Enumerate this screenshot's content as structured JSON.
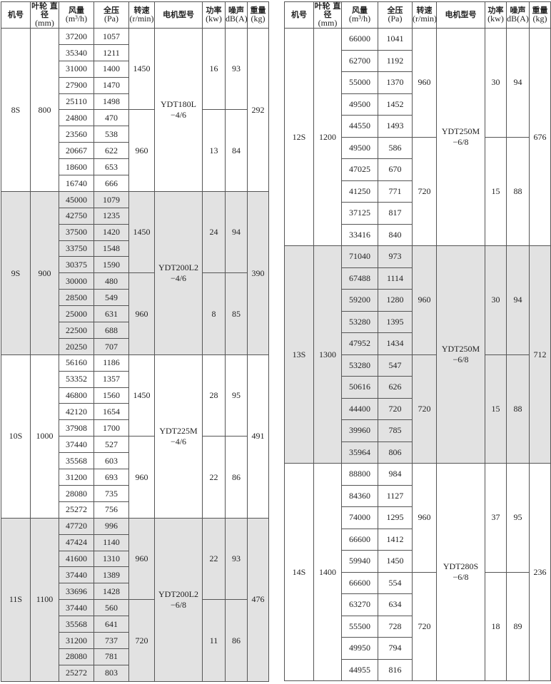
{
  "headers": {
    "model": {
      "zh": "机号"
    },
    "diameter": {
      "zh": "叶轮 直径",
      "unit": "(mm)"
    },
    "flow": {
      "zh": "风量",
      "unit": "(m³/h)"
    },
    "pressure": {
      "zh": "全压",
      "unit": "(Pa)"
    },
    "speed": {
      "zh": "转速",
      "unit": "(r/min)"
    },
    "motor": {
      "zh": "电机型号"
    },
    "power": {
      "zh": "功率",
      "unit": "(kw)"
    },
    "noise": {
      "zh": "噪声",
      "unit": "dB(A)"
    },
    "weight": {
      "zh": "重量",
      "unit": "(kg)"
    }
  },
  "tables": [
    {
      "groups": [
        {
          "model": "8S",
          "diameter": "800",
          "shaded": false,
          "motor": [
            "YDT180L",
            "−4/6"
          ],
          "weight": "292",
          "speeds": [
            "1450",
            "960"
          ],
          "powers": [
            "16",
            "13"
          ],
          "noise": [
            "93",
            "84"
          ],
          "rows": [
            [
              "37200",
              "1057"
            ],
            [
              "35340",
              "1211"
            ],
            [
              "31000",
              "1400"
            ],
            [
              "27900",
              "1470"
            ],
            [
              "25110",
              "1498"
            ],
            [
              "24800",
              "470"
            ],
            [
              "23560",
              "538"
            ],
            [
              "20667",
              "622"
            ],
            [
              "18600",
              "653"
            ],
            [
              "16740",
              "666"
            ]
          ]
        },
        {
          "model": "9S",
          "diameter": "900",
          "shaded": true,
          "motor": [
            "YDT200L2",
            "−4/6"
          ],
          "weight": "390",
          "speeds": [
            "1450",
            "960"
          ],
          "powers": [
            "24",
            "8"
          ],
          "noise": [
            "94",
            "85"
          ],
          "rows": [
            [
              "45000",
              "1079"
            ],
            [
              "42750",
              "1235"
            ],
            [
              "37500",
              "1420"
            ],
            [
              "33750",
              "1548"
            ],
            [
              "30375",
              "1590"
            ],
            [
              "30000",
              "480"
            ],
            [
              "28500",
              "549"
            ],
            [
              "25000",
              "631"
            ],
            [
              "22500",
              "688"
            ],
            [
              "20250",
              "707"
            ]
          ]
        },
        {
          "model": "10S",
          "diameter": "1000",
          "shaded": false,
          "motor": [
            "YDT225M",
            "−4/6"
          ],
          "weight": "491",
          "speeds": [
            "1450",
            "960"
          ],
          "powers": [
            "28",
            "22"
          ],
          "noise": [
            "95",
            "86"
          ],
          "rows": [
            [
              "56160",
              "1186"
            ],
            [
              "53352",
              "1357"
            ],
            [
              "46800",
              "1560"
            ],
            [
              "42120",
              "1654"
            ],
            [
              "37908",
              "1700"
            ],
            [
              "37440",
              "527"
            ],
            [
              "35568",
              "603"
            ],
            [
              "31200",
              "693"
            ],
            [
              "28080",
              "735"
            ],
            [
              "25272",
              "756"
            ]
          ]
        },
        {
          "model": "11S",
          "diameter": "1100",
          "shaded": true,
          "motor": [
            "YDT200L2",
            "−6/8"
          ],
          "weight": "476",
          "speeds": [
            "960",
            "720"
          ],
          "powers": [
            "22",
            "11"
          ],
          "noise": [
            "93",
            "86"
          ],
          "rows": [
            [
              "47720",
              "996"
            ],
            [
              "47424",
              "1140"
            ],
            [
              "41600",
              "1310"
            ],
            [
              "37440",
              "1389"
            ],
            [
              "33696",
              "1428"
            ],
            [
              "37440",
              "560"
            ],
            [
              "35568",
              "641"
            ],
            [
              "31200",
              "737"
            ],
            [
              "28080",
              "781"
            ],
            [
              "25272",
              "803"
            ]
          ]
        }
      ]
    },
    {
      "groups": [
        {
          "model": "12S",
          "diameter": "1200",
          "shaded": false,
          "motor": [
            "YDT250M",
            "−6/8"
          ],
          "weight": "676",
          "speeds": [
            "960",
            "720"
          ],
          "powers": [
            "30",
            "15"
          ],
          "noise": [
            "94",
            "88"
          ],
          "rows": [
            [
              "66000",
              "1041"
            ],
            [
              "62700",
              "1192"
            ],
            [
              "55000",
              "1370"
            ],
            [
              "49500",
              "1452"
            ],
            [
              "44550",
              "1493"
            ],
            [
              "49500",
              "586"
            ],
            [
              "47025",
              "670"
            ],
            [
              "41250",
              "771"
            ],
            [
              "37125",
              "817"
            ],
            [
              "33416",
              "840"
            ]
          ]
        },
        {
          "model": "13S",
          "diameter": "1300",
          "shaded": true,
          "motor": [
            "YDT250M",
            "−6/8"
          ],
          "weight": "712",
          "speeds": [
            "960",
            "720"
          ],
          "powers": [
            "30",
            "15"
          ],
          "noise": [
            "94",
            "88"
          ],
          "rows": [
            [
              "71040",
              "973"
            ],
            [
              "67488",
              "1114"
            ],
            [
              "59200",
              "1280"
            ],
            [
              "53280",
              "1395"
            ],
            [
              "47952",
              "1434"
            ],
            [
              "53280",
              "547"
            ],
            [
              "50616",
              "626"
            ],
            [
              "44400",
              "720"
            ],
            [
              "39960",
              "785"
            ],
            [
              "35964",
              "806"
            ]
          ]
        },
        {
          "model": "14S",
          "diameter": "1400",
          "shaded": false,
          "motor": [
            "YDT280S",
            "−6/8"
          ],
          "weight": "236",
          "speeds": [
            "960",
            "720"
          ],
          "powers": [
            "37",
            "18"
          ],
          "noise": [
            "95",
            "89"
          ],
          "rows": [
            [
              "88800",
              "984"
            ],
            [
              "84360",
              "1127"
            ],
            [
              "74000",
              "1295"
            ],
            [
              "66600",
              "1412"
            ],
            [
              "59940",
              "1450"
            ],
            [
              "66600",
              "554"
            ],
            [
              "63270",
              "634"
            ],
            [
              "55500",
              "728"
            ],
            [
              "49950",
              "794"
            ],
            [
              "44955",
              "816"
            ]
          ]
        }
      ]
    }
  ]
}
